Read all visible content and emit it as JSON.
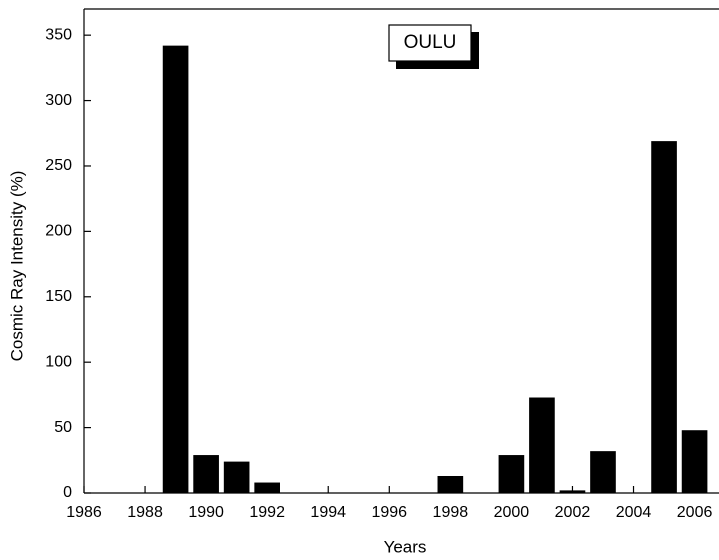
{
  "chart_data": {
    "type": "bar",
    "annotation": "OULU",
    "x_label": "Years",
    "y_label": "Cosmic Ray Intensity (%)",
    "x": [
      1989,
      1990,
      1991,
      1992,
      1998,
      2000,
      2001,
      2002,
      2003,
      2005,
      2006
    ],
    "values": [
      342,
      29,
      24,
      8,
      13,
      29,
      73,
      2,
      32,
      269,
      48
    ],
    "color": "#000000",
    "xlim": [
      1986,
      2006.8
    ],
    "xticks": [
      1986,
      1988,
      1990,
      1992,
      1994,
      1996,
      1998,
      2000,
      2002,
      2004,
      2006
    ],
    "ylim": [
      0,
      370
    ],
    "yticks": [
      0,
      50,
      100,
      150,
      200,
      250,
      300,
      350
    ]
  }
}
